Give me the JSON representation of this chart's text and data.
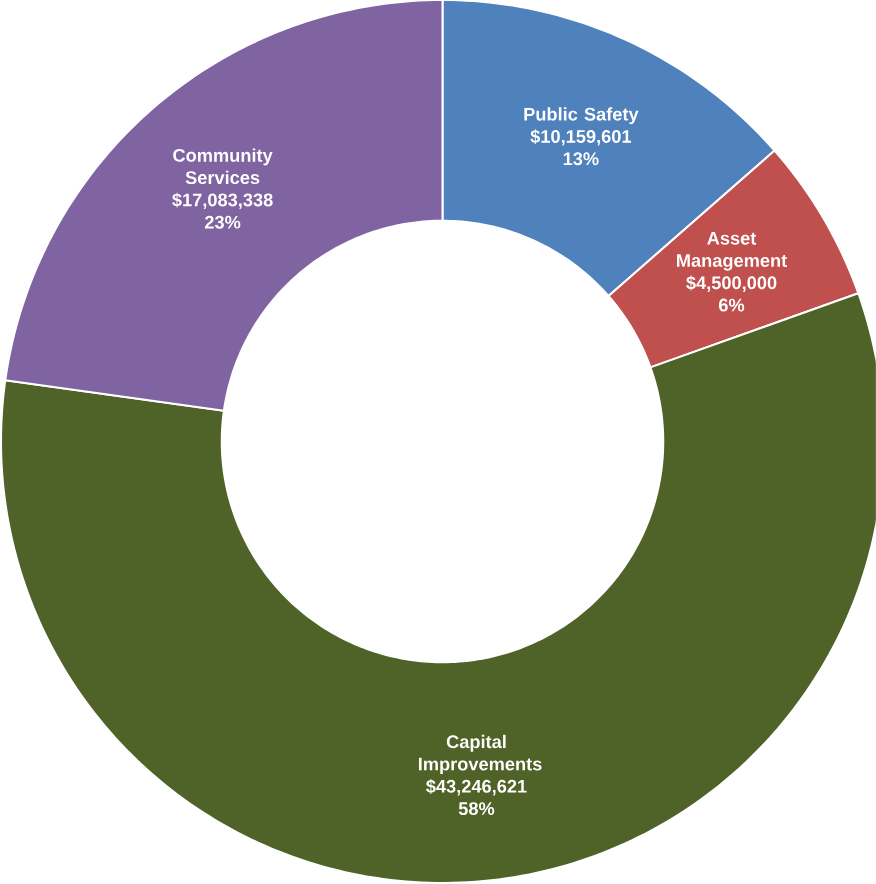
{
  "chart_data": {
    "type": "donut",
    "categories": [
      "Public Safety",
      "Asset Management",
      "Capital Improvements",
      "Community Services"
    ],
    "values": [
      10159601,
      4500000,
      43246621,
      17083338
    ],
    "colors": [
      "#4f81bd",
      "#c0504d",
      "#4f6228",
      "#8064a2"
    ],
    "value_labels": [
      "$10,159,601 13%",
      "$4,500,000 6%",
      "$43,246,621 58%",
      "$17,083,338 23%"
    ]
  }
}
